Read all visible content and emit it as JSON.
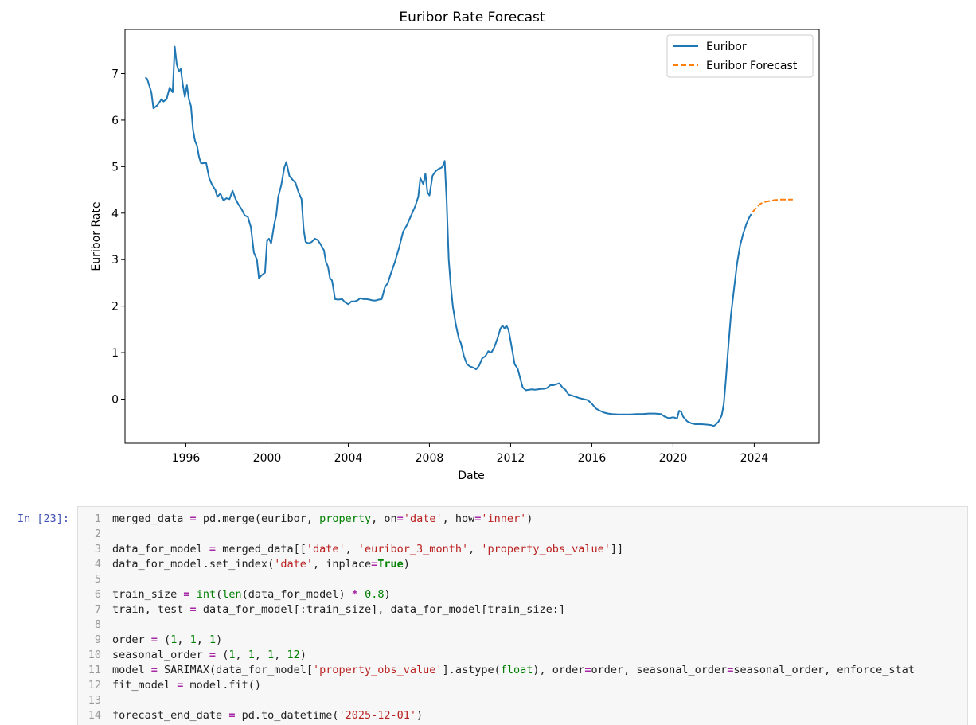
{
  "chart_data": {
    "type": "line",
    "title": "Euribor Rate Forecast",
    "xlabel": "Date",
    "ylabel": "Euribor Rate",
    "xlim": [
      1993.0,
      2027.2
    ],
    "ylim": [
      -0.95,
      7.95
    ],
    "xticks": [
      1996,
      2000,
      2004,
      2008,
      2012,
      2016,
      2020,
      2024
    ],
    "yticks": [
      0,
      1,
      2,
      3,
      4,
      5,
      6,
      7
    ],
    "grid": false,
    "legend_position": "top-right",
    "series": [
      {
        "name": "Euribor",
        "color": "#1f77b4",
        "style": "solid",
        "points": [
          [
            1994.0,
            6.92
          ],
          [
            1994.1,
            6.88
          ],
          [
            1994.3,
            6.6
          ],
          [
            1994.4,
            6.25
          ],
          [
            1994.6,
            6.32
          ],
          [
            1994.8,
            6.45
          ],
          [
            1994.9,
            6.4
          ],
          [
            1995.05,
            6.45
          ],
          [
            1995.2,
            6.7
          ],
          [
            1995.35,
            6.6
          ],
          [
            1995.45,
            7.58
          ],
          [
            1995.55,
            7.2
          ],
          [
            1995.65,
            7.05
          ],
          [
            1995.75,
            7.1
          ],
          [
            1995.85,
            6.75
          ],
          [
            1995.95,
            6.5
          ],
          [
            1996.05,
            6.75
          ],
          [
            1996.15,
            6.45
          ],
          [
            1996.25,
            6.3
          ],
          [
            1996.35,
            5.8
          ],
          [
            1996.45,
            5.55
          ],
          [
            1996.55,
            5.45
          ],
          [
            1996.65,
            5.2
          ],
          [
            1996.75,
            5.07
          ],
          [
            1997.0,
            5.08
          ],
          [
            1997.15,
            4.75
          ],
          [
            1997.3,
            4.6
          ],
          [
            1997.45,
            4.5
          ],
          [
            1997.55,
            4.35
          ],
          [
            1997.7,
            4.42
          ],
          [
            1997.85,
            4.27
          ],
          [
            1998.0,
            4.32
          ],
          [
            1998.15,
            4.3
          ],
          [
            1998.3,
            4.48
          ],
          [
            1998.45,
            4.3
          ],
          [
            1998.6,
            4.18
          ],
          [
            1998.75,
            4.08
          ],
          [
            1998.9,
            3.95
          ],
          [
            1999.05,
            3.92
          ],
          [
            1999.2,
            3.7
          ],
          [
            1999.35,
            3.15
          ],
          [
            1999.5,
            3.0
          ],
          [
            1999.6,
            2.6
          ],
          [
            1999.75,
            2.67
          ],
          [
            1999.9,
            2.72
          ],
          [
            2000.0,
            3.4
          ],
          [
            2000.1,
            3.45
          ],
          [
            2000.2,
            3.35
          ],
          [
            2000.35,
            3.75
          ],
          [
            2000.45,
            3.95
          ],
          [
            2000.55,
            4.35
          ],
          [
            2000.7,
            4.6
          ],
          [
            2000.85,
            4.98
          ],
          [
            2000.95,
            5.1
          ],
          [
            2001.1,
            4.8
          ],
          [
            2001.25,
            4.72
          ],
          [
            2001.4,
            4.65
          ],
          [
            2001.55,
            4.45
          ],
          [
            2001.7,
            4.3
          ],
          [
            2001.8,
            3.65
          ],
          [
            2001.9,
            3.38
          ],
          [
            2002.05,
            3.35
          ],
          [
            2002.2,
            3.38
          ],
          [
            2002.35,
            3.45
          ],
          [
            2002.5,
            3.42
          ],
          [
            2002.65,
            3.32
          ],
          [
            2002.8,
            3.2
          ],
          [
            2002.9,
            2.95
          ],
          [
            2003.0,
            2.85
          ],
          [
            2003.1,
            2.6
          ],
          [
            2003.2,
            2.55
          ],
          [
            2003.35,
            2.15
          ],
          [
            2003.5,
            2.14
          ],
          [
            2003.7,
            2.15
          ],
          [
            2003.85,
            2.08
          ],
          [
            2004.0,
            2.04
          ],
          [
            2004.15,
            2.1
          ],
          [
            2004.3,
            2.1
          ],
          [
            2004.45,
            2.12
          ],
          [
            2004.6,
            2.17
          ],
          [
            2004.75,
            2.15
          ],
          [
            2004.9,
            2.15
          ],
          [
            2005.05,
            2.14
          ],
          [
            2005.2,
            2.12
          ],
          [
            2005.35,
            2.12
          ],
          [
            2005.5,
            2.14
          ],
          [
            2005.65,
            2.15
          ],
          [
            2005.8,
            2.4
          ],
          [
            2005.95,
            2.5
          ],
          [
            2006.1,
            2.7
          ],
          [
            2006.3,
            2.95
          ],
          [
            2006.5,
            3.25
          ],
          [
            2006.7,
            3.6
          ],
          [
            2006.9,
            3.75
          ],
          [
            2007.1,
            3.95
          ],
          [
            2007.3,
            4.15
          ],
          [
            2007.45,
            4.35
          ],
          [
            2007.55,
            4.75
          ],
          [
            2007.7,
            4.62
          ],
          [
            2007.8,
            4.85
          ],
          [
            2007.9,
            4.45
          ],
          [
            2008.0,
            4.38
          ],
          [
            2008.15,
            4.8
          ],
          [
            2008.3,
            4.9
          ],
          [
            2008.45,
            4.95
          ],
          [
            2008.6,
            4.98
          ],
          [
            2008.7,
            5.05
          ],
          [
            2008.75,
            5.12
          ],
          [
            2008.85,
            4.25
          ],
          [
            2008.95,
            3.0
          ],
          [
            2009.05,
            2.45
          ],
          [
            2009.15,
            2.0
          ],
          [
            2009.3,
            1.6
          ],
          [
            2009.45,
            1.3
          ],
          [
            2009.55,
            1.2
          ],
          [
            2009.7,
            0.92
          ],
          [
            2009.85,
            0.75
          ],
          [
            2010.0,
            0.7
          ],
          [
            2010.15,
            0.68
          ],
          [
            2010.3,
            0.64
          ],
          [
            2010.45,
            0.72
          ],
          [
            2010.6,
            0.88
          ],
          [
            2010.75,
            0.92
          ],
          [
            2010.9,
            1.03
          ],
          [
            2011.05,
            1.0
          ],
          [
            2011.2,
            1.12
          ],
          [
            2011.35,
            1.3
          ],
          [
            2011.5,
            1.52
          ],
          [
            2011.6,
            1.58
          ],
          [
            2011.7,
            1.52
          ],
          [
            2011.8,
            1.58
          ],
          [
            2011.9,
            1.48
          ],
          [
            2012.0,
            1.25
          ],
          [
            2012.1,
            1.0
          ],
          [
            2012.2,
            0.75
          ],
          [
            2012.35,
            0.65
          ],
          [
            2012.5,
            0.4
          ],
          [
            2012.6,
            0.25
          ],
          [
            2012.75,
            0.19
          ],
          [
            2012.9,
            0.2
          ],
          [
            2013.05,
            0.21
          ],
          [
            2013.2,
            0.2
          ],
          [
            2013.35,
            0.21
          ],
          [
            2013.5,
            0.22
          ],
          [
            2013.65,
            0.22
          ],
          [
            2013.8,
            0.24
          ],
          [
            2013.95,
            0.3
          ],
          [
            2014.1,
            0.3
          ],
          [
            2014.25,
            0.32
          ],
          [
            2014.4,
            0.34
          ],
          [
            2014.55,
            0.25
          ],
          [
            2014.7,
            0.2
          ],
          [
            2014.85,
            0.1
          ],
          [
            2015.0,
            0.08
          ],
          [
            2015.2,
            0.05
          ],
          [
            2015.4,
            0.02
          ],
          [
            2015.6,
            0.0
          ],
          [
            2015.8,
            -0.02
          ],
          [
            2016.0,
            -0.1
          ],
          [
            2016.2,
            -0.2
          ],
          [
            2016.4,
            -0.25
          ],
          [
            2016.6,
            -0.29
          ],
          [
            2016.8,
            -0.31
          ],
          [
            2017.0,
            -0.32
          ],
          [
            2017.3,
            -0.33
          ],
          [
            2017.6,
            -0.33
          ],
          [
            2017.9,
            -0.33
          ],
          [
            2018.2,
            -0.32
          ],
          [
            2018.5,
            -0.32
          ],
          [
            2018.8,
            -0.31
          ],
          [
            2019.1,
            -0.31
          ],
          [
            2019.4,
            -0.32
          ],
          [
            2019.6,
            -0.38
          ],
          [
            2019.8,
            -0.41
          ],
          [
            2020.0,
            -0.39
          ],
          [
            2020.1,
            -0.4
          ],
          [
            2020.2,
            -0.42
          ],
          [
            2020.3,
            -0.25
          ],
          [
            2020.4,
            -0.27
          ],
          [
            2020.5,
            -0.38
          ],
          [
            2020.7,
            -0.48
          ],
          [
            2020.9,
            -0.52
          ],
          [
            2021.1,
            -0.54
          ],
          [
            2021.4,
            -0.54
          ],
          [
            2021.7,
            -0.55
          ],
          [
            2021.9,
            -0.56
          ],
          [
            2022.0,
            -0.58
          ],
          [
            2022.1,
            -0.55
          ],
          [
            2022.25,
            -0.48
          ],
          [
            2022.4,
            -0.35
          ],
          [
            2022.5,
            -0.1
          ],
          [
            2022.6,
            0.4
          ],
          [
            2022.7,
            1.0
          ],
          [
            2022.85,
            1.8
          ],
          [
            2023.0,
            2.35
          ],
          [
            2023.15,
            2.9
          ],
          [
            2023.3,
            3.3
          ],
          [
            2023.45,
            3.55
          ],
          [
            2023.6,
            3.75
          ],
          [
            2023.75,
            3.9
          ],
          [
            2023.85,
            3.98
          ]
        ]
      },
      {
        "name": "Euribor Forecast",
        "color": "#ff7f0e",
        "style": "dashed",
        "points": [
          [
            2023.92,
            4.02
          ],
          [
            2024.1,
            4.12
          ],
          [
            2024.3,
            4.2
          ],
          [
            2024.5,
            4.24
          ],
          [
            2024.75,
            4.26
          ],
          [
            2025.0,
            4.28
          ],
          [
            2025.3,
            4.29
          ],
          [
            2025.6,
            4.29
          ],
          [
            2025.9,
            4.29
          ]
        ]
      }
    ]
  },
  "notebook": {
    "prompt": "In [23]:",
    "lines": [
      {
        "n": "1",
        "tokens": [
          [
            "t",
            "merged_data "
          ],
          [
            "op",
            "="
          ],
          [
            "t",
            " pd.merge(euribor, "
          ],
          [
            "bi",
            "property"
          ],
          [
            "t",
            ", on"
          ],
          [
            "op",
            "="
          ],
          [
            "str",
            "'date'"
          ],
          [
            "t",
            ", how"
          ],
          [
            "op",
            "="
          ],
          [
            "str",
            "'inner'"
          ],
          [
            "t",
            ")"
          ]
        ]
      },
      {
        "n": "2",
        "tokens": []
      },
      {
        "n": "3",
        "tokens": [
          [
            "t",
            "data_for_model "
          ],
          [
            "op",
            "="
          ],
          [
            "t",
            " merged_data[["
          ],
          [
            "str",
            "'date'"
          ],
          [
            "t",
            ", "
          ],
          [
            "str",
            "'euribor_3_month'"
          ],
          [
            "t",
            ", "
          ],
          [
            "str",
            "'property_obs_value'"
          ],
          [
            "t",
            "]]"
          ]
        ]
      },
      {
        "n": "4",
        "tokens": [
          [
            "t",
            "data_for_model.set_index("
          ],
          [
            "str",
            "'date'"
          ],
          [
            "t",
            ", inplace"
          ],
          [
            "op",
            "="
          ],
          [
            "kc",
            "True"
          ],
          [
            "t",
            ")"
          ]
        ]
      },
      {
        "n": "5",
        "tokens": []
      },
      {
        "n": "6",
        "tokens": [
          [
            "t",
            "train_size "
          ],
          [
            "op",
            "="
          ],
          [
            "t",
            " "
          ],
          [
            "bi",
            "int"
          ],
          [
            "t",
            "("
          ],
          [
            "bi",
            "len"
          ],
          [
            "t",
            "(data_for_model) "
          ],
          [
            "op",
            "*"
          ],
          [
            "t",
            " "
          ],
          [
            "num",
            "0.8"
          ],
          [
            "t",
            ")"
          ]
        ]
      },
      {
        "n": "7",
        "tokens": [
          [
            "t",
            "train, test "
          ],
          [
            "op",
            "="
          ],
          [
            "t",
            " data_for_model[:train_size], data_for_model[train_size:]"
          ]
        ]
      },
      {
        "n": "8",
        "tokens": []
      },
      {
        "n": "9",
        "tokens": [
          [
            "t",
            "order "
          ],
          [
            "op",
            "="
          ],
          [
            "t",
            " ("
          ],
          [
            "num",
            "1"
          ],
          [
            "t",
            ", "
          ],
          [
            "num",
            "1"
          ],
          [
            "t",
            ", "
          ],
          [
            "num",
            "1"
          ],
          [
            "t",
            ")"
          ]
        ]
      },
      {
        "n": "10",
        "tokens": [
          [
            "t",
            "seasonal_order "
          ],
          [
            "op",
            "="
          ],
          [
            "t",
            " ("
          ],
          [
            "num",
            "1"
          ],
          [
            "t",
            ", "
          ],
          [
            "num",
            "1"
          ],
          [
            "t",
            ", "
          ],
          [
            "num",
            "1"
          ],
          [
            "t",
            ", "
          ],
          [
            "num",
            "12"
          ],
          [
            "t",
            ")"
          ]
        ]
      },
      {
        "n": "11",
        "tokens": [
          [
            "t",
            "model "
          ],
          [
            "op",
            "="
          ],
          [
            "t",
            " SARIMAX(data_for_model["
          ],
          [
            "str",
            "'property_obs_value'"
          ],
          [
            "t",
            "].astype("
          ],
          [
            "bi",
            "float"
          ],
          [
            "t",
            "), order"
          ],
          [
            "op",
            "="
          ],
          [
            "t",
            "order, seasonal_order"
          ],
          [
            "op",
            "="
          ],
          [
            "t",
            "seasonal_order, enforce_stat"
          ]
        ]
      },
      {
        "n": "12",
        "tokens": [
          [
            "t",
            "fit_model "
          ],
          [
            "op",
            "="
          ],
          [
            "t",
            " model.fit()"
          ]
        ]
      },
      {
        "n": "13",
        "tokens": []
      },
      {
        "n": "14",
        "tokens": [
          [
            "t",
            "forecast_end_date "
          ],
          [
            "op",
            "="
          ],
          [
            "t",
            " pd.to_datetime("
          ],
          [
            "str",
            "'2025-12-01'"
          ],
          [
            "t",
            ")"
          ]
        ]
      }
    ]
  }
}
